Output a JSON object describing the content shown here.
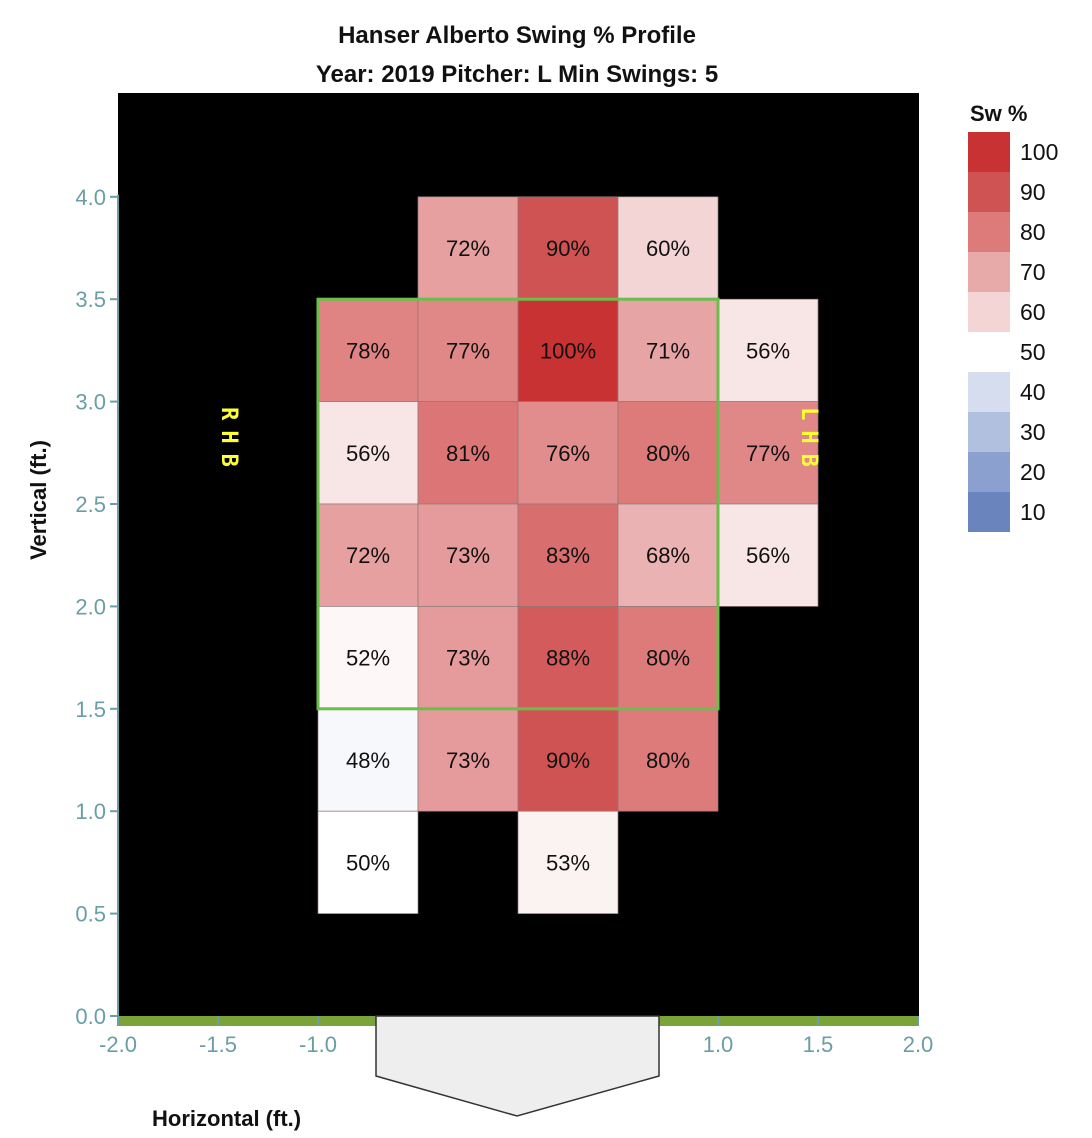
{
  "chart_data": {
    "type": "heatmap",
    "title": "Hanser Alberto Swing % Profile",
    "subtitle": "Year: 2019 Pitcher: L Min Swings: 5",
    "xlabel": "Horizontal (ft.)",
    "ylabel": "Vertical (ft.)",
    "xlim": [
      -2.0,
      2.0
    ],
    "ylim": [
      0.0,
      4.45
    ],
    "x_ticks": [
      "-2.0",
      "-1.5",
      "-1.0",
      "1.0",
      "1.5",
      "2.0"
    ],
    "y_ticks": [
      "0.0",
      "0.5",
      "1.0",
      "1.5",
      "2.0",
      "2.5",
      "3.0",
      "3.5",
      "4.0"
    ],
    "strike_zone": {
      "x": [
        -1.0,
        1.0
      ],
      "y": [
        1.5,
        3.5
      ]
    },
    "side_labels": {
      "left": "RHB",
      "right": "LHB"
    },
    "legend": {
      "title": "Sw %",
      "position": "right",
      "items": [
        {
          "label": "100",
          "color": "#c83232"
        },
        {
          "label": "90",
          "color": "#d05353"
        },
        {
          "label": "80",
          "color": "#dd7a7a"
        },
        {
          "label": "70",
          "color": "#e8a9a9"
        },
        {
          "label": "60",
          "color": "#f3d5d5"
        },
        {
          "label": "50",
          "color": "#ffffff"
        },
        {
          "label": "40",
          "color": "#d5ddee"
        },
        {
          "label": "30",
          "color": "#b1c0df"
        },
        {
          "label": "20",
          "color": "#8ca0cf"
        },
        {
          "label": "10",
          "color": "#6a84be"
        }
      ]
    },
    "cells": [
      {
        "x": -0.5,
        "y": 4.0,
        "value": 72,
        "label": "72%"
      },
      {
        "x": 0.0,
        "y": 4.0,
        "value": 90,
        "label": "90%"
      },
      {
        "x": 0.5,
        "y": 4.0,
        "value": 60,
        "label": "60%"
      },
      {
        "x": -1.0,
        "y": 3.5,
        "value": 78,
        "label": "78%"
      },
      {
        "x": -0.5,
        "y": 3.5,
        "value": 77,
        "label": "77%"
      },
      {
        "x": 0.0,
        "y": 3.5,
        "value": 100,
        "label": "100%"
      },
      {
        "x": 0.5,
        "y": 3.5,
        "value": 71,
        "label": "71%"
      },
      {
        "x": 1.0,
        "y": 3.5,
        "value": 56,
        "label": "56%"
      },
      {
        "x": -1.0,
        "y": 3.0,
        "value": 56,
        "label": "56%"
      },
      {
        "x": -0.5,
        "y": 3.0,
        "value": 81,
        "label": "81%"
      },
      {
        "x": 0.0,
        "y": 3.0,
        "value": 76,
        "label": "76%"
      },
      {
        "x": 0.5,
        "y": 3.0,
        "value": 80,
        "label": "80%"
      },
      {
        "x": 1.0,
        "y": 3.0,
        "value": 77,
        "label": "77%"
      },
      {
        "x": -1.0,
        "y": 2.5,
        "value": 72,
        "label": "72%"
      },
      {
        "x": -0.5,
        "y": 2.5,
        "value": 73,
        "label": "73%"
      },
      {
        "x": 0.0,
        "y": 2.5,
        "value": 83,
        "label": "83%"
      },
      {
        "x": 0.5,
        "y": 2.5,
        "value": 68,
        "label": "68%"
      },
      {
        "x": 1.0,
        "y": 2.5,
        "value": 56,
        "label": "56%"
      },
      {
        "x": -1.0,
        "y": 2.0,
        "value": 52,
        "label": "52%"
      },
      {
        "x": -0.5,
        "y": 2.0,
        "value": 73,
        "label": "73%"
      },
      {
        "x": 0.0,
        "y": 2.0,
        "value": 88,
        "label": "88%"
      },
      {
        "x": 0.5,
        "y": 2.0,
        "value": 80,
        "label": "80%"
      },
      {
        "x": -1.0,
        "y": 1.5,
        "value": 48,
        "label": "48%"
      },
      {
        "x": -0.5,
        "y": 1.5,
        "value": 73,
        "label": "73%"
      },
      {
        "x": 0.0,
        "y": 1.5,
        "value": 90,
        "label": "90%"
      },
      {
        "x": 0.5,
        "y": 1.5,
        "value": 80,
        "label": "80%"
      },
      {
        "x": -1.0,
        "y": 1.0,
        "value": 50,
        "label": "50%"
      },
      {
        "x": 0.0,
        "y": 1.0,
        "value": 53,
        "label": "53%"
      }
    ],
    "colors": {
      "background": "#000000",
      "zone_outline": "#6abf4b",
      "axis": "#6a9ea6",
      "ground": "#7aa33a",
      "plate_fill": "#eeeeee",
      "plate_stroke": "#333333",
      "side_label": "#ffff33"
    }
  }
}
